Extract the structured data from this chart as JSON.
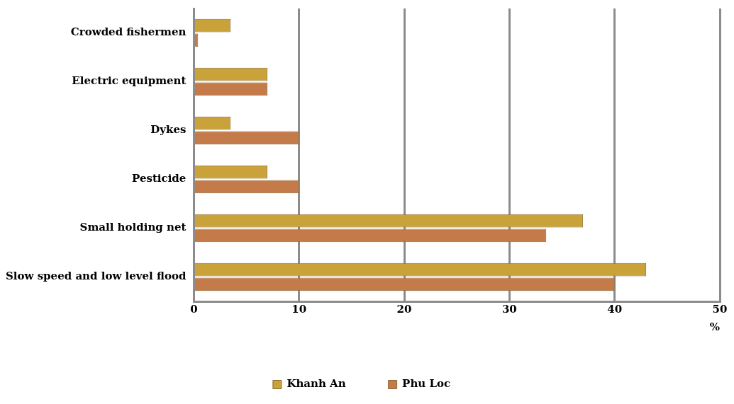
{
  "chart_data": {
    "type": "bar",
    "orientation": "horizontal",
    "categories": [
      "Crowded fishermen",
      "Electric equipment",
      "Dykes",
      "Pesticide",
      "Small holding net",
      "Slow speed and low level flood"
    ],
    "series": [
      {
        "name": "Khanh An",
        "color": "#c9a23a",
        "values": [
          3.5,
          7,
          3.5,
          7,
          37,
          43
        ]
      },
      {
        "name": "Phu Loc",
        "color": "#c57a4a",
        "values": [
          0.4,
          7,
          10,
          10,
          33.5,
          40
        ]
      }
    ],
    "xlabel": "%",
    "xlim": [
      0,
      50
    ],
    "xticks": [
      0,
      10,
      20,
      30,
      40,
      50
    ],
    "grid": "x",
    "legend": "bottom"
  }
}
